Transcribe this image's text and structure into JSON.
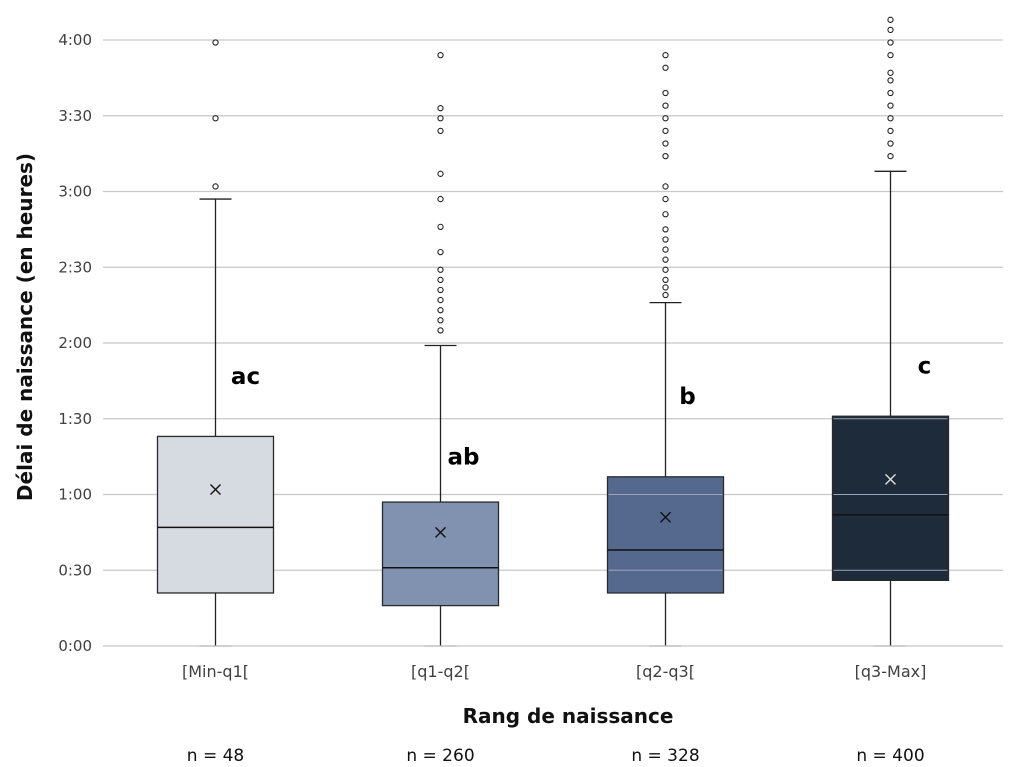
{
  "chart_data": {
    "type": "box",
    "xlabel": "Rang de naissance",
    "ylabel": "Délai de naissance (en heures)",
    "y_unit": "minutes",
    "ylim": [
      0,
      240
    ],
    "y_ticks": [
      {
        "value": 0,
        "label": "0:00"
      },
      {
        "value": 30,
        "label": "0:30"
      },
      {
        "value": 60,
        "label": "1:00"
      },
      {
        "value": 90,
        "label": "1:30"
      },
      {
        "value": 120,
        "label": "2:00"
      },
      {
        "value": 150,
        "label": "2:30"
      },
      {
        "value": 180,
        "label": "3:00"
      },
      {
        "value": 210,
        "label": "3:30"
      },
      {
        "value": 240,
        "label": "4:00"
      }
    ],
    "grid": true,
    "categories": [
      "[Min-q1[",
      "[q1-q2[",
      "[q2-q3[",
      "[q3-Max]"
    ],
    "boxes": [
      {
        "category": "[Min-q1[",
        "whisker_low": 0,
        "q1": 21,
        "median": 47,
        "q3": 83,
        "whisker_high": 177,
        "mean": 62,
        "outliers": [
          182,
          209,
          239
        ],
        "significance": "ac",
        "n_label": "n = 48",
        "color": "#d6dbe2"
      },
      {
        "category": "[q1-q2[",
        "whisker_low": 0,
        "q1": 16,
        "median": 31,
        "q3": 57,
        "whisker_high": 119,
        "mean": 45,
        "outliers": [
          125,
          129,
          133,
          137,
          141,
          145,
          149,
          156,
          166,
          177,
          187,
          204,
          209,
          213,
          234
        ],
        "significance": "ab",
        "n_label": "n = 260",
        "color": "#8092b0"
      },
      {
        "category": "[q2-q3[",
        "whisker_low": 0,
        "q1": 21,
        "median": 38,
        "q3": 67,
        "whisker_high": 136,
        "mean": 51,
        "outliers": [
          139,
          142,
          145,
          149,
          153,
          157,
          161,
          165,
          171,
          177,
          182,
          194,
          199,
          204,
          209,
          214,
          219,
          229,
          234
        ],
        "significance": "b",
        "n_label": "n = 328",
        "color": "#55698f"
      },
      {
        "category": "[q3-Max]",
        "whisker_low": 0,
        "q1": 26,
        "median": 52,
        "q3": 91,
        "whisker_high": 188,
        "mean": 66,
        "outliers": [
          194,
          199,
          204,
          209,
          214,
          219,
          224,
          227,
          234,
          239,
          244,
          248
        ],
        "significance": "c",
        "n_label": "n = 400",
        "color": "#1e2b3a"
      }
    ]
  }
}
